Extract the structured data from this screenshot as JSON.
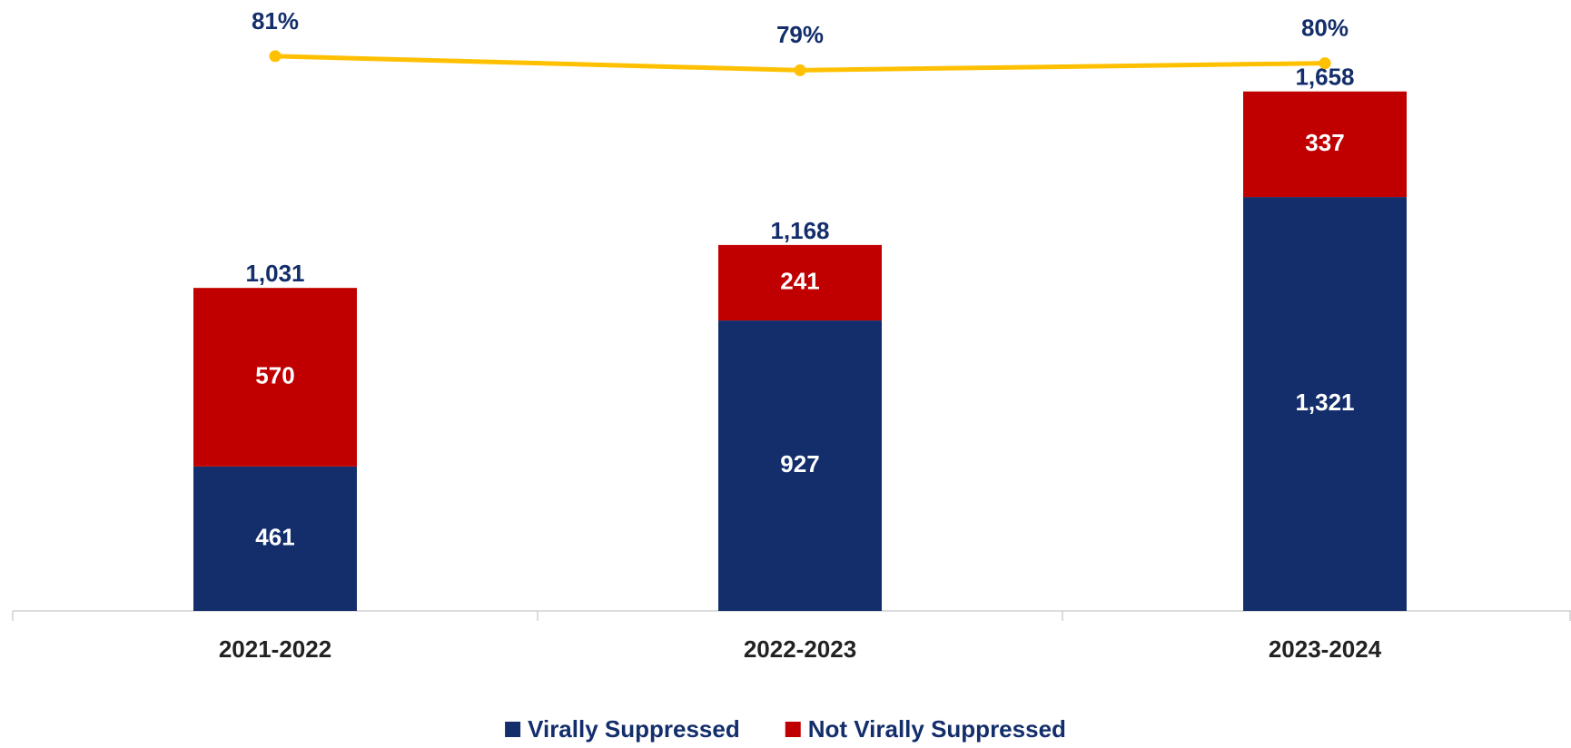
{
  "chart_data": {
    "type": "bar",
    "stacked": true,
    "categories": [
      "2021-2022",
      "2022-2023",
      "2023-2024"
    ],
    "series": [
      {
        "name": "Virally Suppressed",
        "color": "#132e6b",
        "values": [
          461,
          927,
          1321
        ],
        "value_labels": [
          "461",
          "927",
          "1,321"
        ]
      },
      {
        "name": "Not Virally Suppressed",
        "color": "#c00000",
        "values": [
          570,
          241,
          337
        ]
      }
    ],
    "totals": [
      1031,
      1168,
      1658
    ],
    "total_labels": [
      "1,031",
      "1,168",
      "1,658"
    ],
    "line": {
      "type": "line",
      "axis": "y2",
      "color": "#ffc000",
      "values": [
        81,
        79,
        80
      ],
      "value_labels": [
        "81%",
        "79%",
        "80%"
      ]
    },
    "ylim": [
      0,
      1950
    ],
    "y2lim": [
      2,
      89
    ],
    "legend": "bottom"
  }
}
